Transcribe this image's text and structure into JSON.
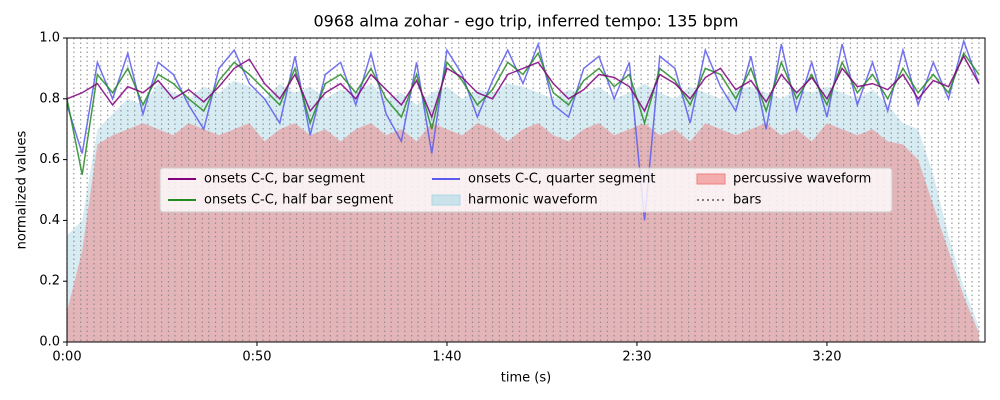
{
  "chart_data": {
    "type": "line",
    "title": "0968 alma zohar - ego trip, inferred tempo: 135 bpm",
    "xlabel": "time (s)",
    "ylabel": "normalized values",
    "xlim": [
      0,
      241.6
    ],
    "ylim": [
      0,
      1.0
    ],
    "xticks": [
      {
        "value": 0,
        "label": "0:00"
      },
      {
        "value": 50,
        "label": "0:50"
      },
      {
        "value": 100,
        "label": "1:40"
      },
      {
        "value": 150,
        "label": "2:30"
      },
      {
        "value": 200,
        "label": "3:20"
      }
    ],
    "yticks": [
      {
        "value": 0,
        "label": "0.0"
      },
      0.2,
      0.4,
      0.6,
      0.8,
      {
        "value": 1,
        "label": "1.0"
      }
    ],
    "legend": "center",
    "x": [
      0,
      4,
      8,
      12,
      16,
      20,
      24,
      28,
      32,
      36,
      40,
      44,
      48,
      52,
      56,
      60,
      64,
      68,
      72,
      76,
      80,
      84,
      88,
      92,
      96,
      100,
      104,
      108,
      112,
      116,
      120,
      124,
      128,
      132,
      136,
      140,
      144,
      148,
      152,
      156,
      160,
      164,
      168,
      172,
      176,
      180,
      184,
      188,
      192,
      196,
      200,
      204,
      208,
      212,
      216,
      220,
      224,
      228,
      232,
      236,
      240
    ],
    "series": [
      {
        "name": "onsets C-C, bar segment",
        "color": "#800080",
        "style": "line",
        "values": [
          0.8,
          0.82,
          0.85,
          0.78,
          0.84,
          0.82,
          0.86,
          0.8,
          0.83,
          0.79,
          0.84,
          0.9,
          0.93,
          0.85,
          0.8,
          0.88,
          0.76,
          0.82,
          0.85,
          0.8,
          0.88,
          0.83,
          0.78,
          0.86,
          0.74,
          0.9,
          0.87,
          0.82,
          0.8,
          0.88,
          0.9,
          0.92,
          0.85,
          0.8,
          0.83,
          0.88,
          0.87,
          0.84,
          0.76,
          0.88,
          0.85,
          0.8,
          0.87,
          0.9,
          0.83,
          0.86,
          0.79,
          0.88,
          0.82,
          0.87,
          0.8,
          0.9,
          0.84,
          0.85,
          0.83,
          0.88,
          0.8,
          0.86,
          0.84,
          0.94,
          0.85
        ]
      },
      {
        "name": "onsets C-C, half bar segment",
        "color": "#228b22",
        "style": "line",
        "values": [
          0.8,
          0.55,
          0.88,
          0.82,
          0.9,
          0.78,
          0.88,
          0.85,
          0.8,
          0.76,
          0.86,
          0.92,
          0.88,
          0.83,
          0.78,
          0.9,
          0.72,
          0.85,
          0.88,
          0.82,
          0.9,
          0.8,
          0.74,
          0.88,
          0.7,
          0.92,
          0.86,
          0.78,
          0.83,
          0.92,
          0.88,
          0.95,
          0.82,
          0.78,
          0.86,
          0.9,
          0.84,
          0.88,
          0.72,
          0.9,
          0.86,
          0.78,
          0.9,
          0.88,
          0.8,
          0.9,
          0.76,
          0.92,
          0.8,
          0.88,
          0.78,
          0.92,
          0.82,
          0.88,
          0.8,
          0.9,
          0.82,
          0.88,
          0.82,
          0.95,
          0.88
        ]
      },
      {
        "name": "onsets C-C, quarter segment",
        "color": "#5a5aee",
        "style": "line",
        "values": [
          0.78,
          0.62,
          0.92,
          0.8,
          0.95,
          0.75,
          0.92,
          0.88,
          0.78,
          0.7,
          0.9,
          0.96,
          0.85,
          0.8,
          0.72,
          0.94,
          0.68,
          0.88,
          0.92,
          0.78,
          0.95,
          0.75,
          0.66,
          0.92,
          0.62,
          0.96,
          0.88,
          0.74,
          0.86,
          0.96,
          0.85,
          0.98,
          0.78,
          0.74,
          0.9,
          0.94,
          0.8,
          0.92,
          0.4,
          0.94,
          0.9,
          0.72,
          0.96,
          0.84,
          0.76,
          0.94,
          0.7,
          0.98,
          0.76,
          0.92,
          0.74,
          0.98,
          0.78,
          0.92,
          0.76,
          0.96,
          0.78,
          0.92,
          0.8,
          0.99,
          0.85
        ]
      },
      {
        "name": "harmonic waveform",
        "color": "#add8e6",
        "style": "area",
        "values": [
          0.35,
          0.4,
          0.7,
          0.75,
          0.8,
          0.78,
          0.85,
          0.82,
          0.8,
          0.84,
          0.82,
          0.86,
          0.84,
          0.8,
          0.85,
          0.82,
          0.84,
          0.8,
          0.83,
          0.82,
          0.85,
          0.8,
          0.82,
          0.78,
          0.82,
          0.84,
          0.8,
          0.83,
          0.82,
          0.85,
          0.84,
          0.82,
          0.8,
          0.83,
          0.82,
          0.84,
          0.8,
          0.82,
          0.85,
          0.82,
          0.8,
          0.84,
          0.82,
          0.8,
          0.83,
          0.84,
          0.82,
          0.8,
          0.83,
          0.82,
          0.84,
          0.82,
          0.8,
          0.83,
          0.78,
          0.72,
          0.7,
          0.55,
          0.35,
          0.18,
          0.05
        ]
      },
      {
        "name": "percussive waveform",
        "color": "#f08080",
        "style": "area",
        "values": [
          0.1,
          0.3,
          0.65,
          0.68,
          0.7,
          0.72,
          0.7,
          0.68,
          0.72,
          0.7,
          0.68,
          0.7,
          0.72,
          0.66,
          0.7,
          0.72,
          0.68,
          0.7,
          0.66,
          0.7,
          0.72,
          0.68,
          0.7,
          0.66,
          0.72,
          0.7,
          0.68,
          0.72,
          0.7,
          0.66,
          0.7,
          0.72,
          0.68,
          0.66,
          0.7,
          0.72,
          0.68,
          0.7,
          0.72,
          0.68,
          0.7,
          0.66,
          0.72,
          0.7,
          0.68,
          0.7,
          0.72,
          0.68,
          0.7,
          0.66,
          0.72,
          0.7,
          0.68,
          0.7,
          0.66,
          0.65,
          0.6,
          0.45,
          0.3,
          0.15,
          0.03
        ]
      }
    ],
    "bars": {
      "name": "bars",
      "color": "#808080",
      "x": [
        0,
        1.8,
        3.6,
        5.3,
        7.1,
        8.9,
        10.7,
        12.4,
        14.2,
        16.0,
        17.8,
        19.6,
        21.3,
        23.1,
        24.9,
        26.7,
        28.4,
        30.2,
        32.0,
        33.8,
        35.6,
        37.3,
        39.1,
        40.9,
        42.7,
        44.4,
        46.2,
        48.0,
        49.8,
        51.6,
        53.3,
        55.1,
        56.9,
        58.7,
        60.4,
        62.2,
        64.0,
        65.8,
        67.6,
        69.3,
        71.1,
        72.9,
        74.7,
        76.4,
        78.2,
        80.0,
        81.8,
        83.6,
        85.3,
        87.1,
        88.9,
        90.7,
        92.4,
        94.2,
        96.0,
        97.8,
        99.6,
        101.3,
        103.1,
        104.9,
        106.7,
        108.4,
        110.2,
        112.0,
        113.8,
        115.6,
        117.3,
        119.1,
        120.9,
        122.7,
        124.4,
        126.2,
        128.0,
        129.8,
        131.6,
        133.3,
        135.1,
        136.9,
        138.7,
        140.4,
        142.2,
        144.0,
        145.8,
        147.6,
        149.3,
        151.1,
        152.9,
        154.7,
        156.4,
        158.2,
        160.0,
        161.8,
        163.6,
        165.3,
        167.1,
        168.9,
        170.7,
        172.4,
        174.2,
        176.0,
        177.8,
        179.6,
        181.3,
        183.1,
        184.9,
        186.7,
        188.4,
        190.2,
        192.0,
        193.8,
        195.6,
        197.3,
        199.1,
        200.9,
        202.7,
        204.4,
        206.2,
        208.0,
        209.8,
        211.6,
        213.3,
        215.1,
        216.9,
        218.7,
        220.4,
        222.2,
        224.0,
        225.8,
        227.6,
        229.3,
        231.1,
        232.9,
        234.7,
        236.4,
        238.2,
        240.0
      ]
    }
  }
}
